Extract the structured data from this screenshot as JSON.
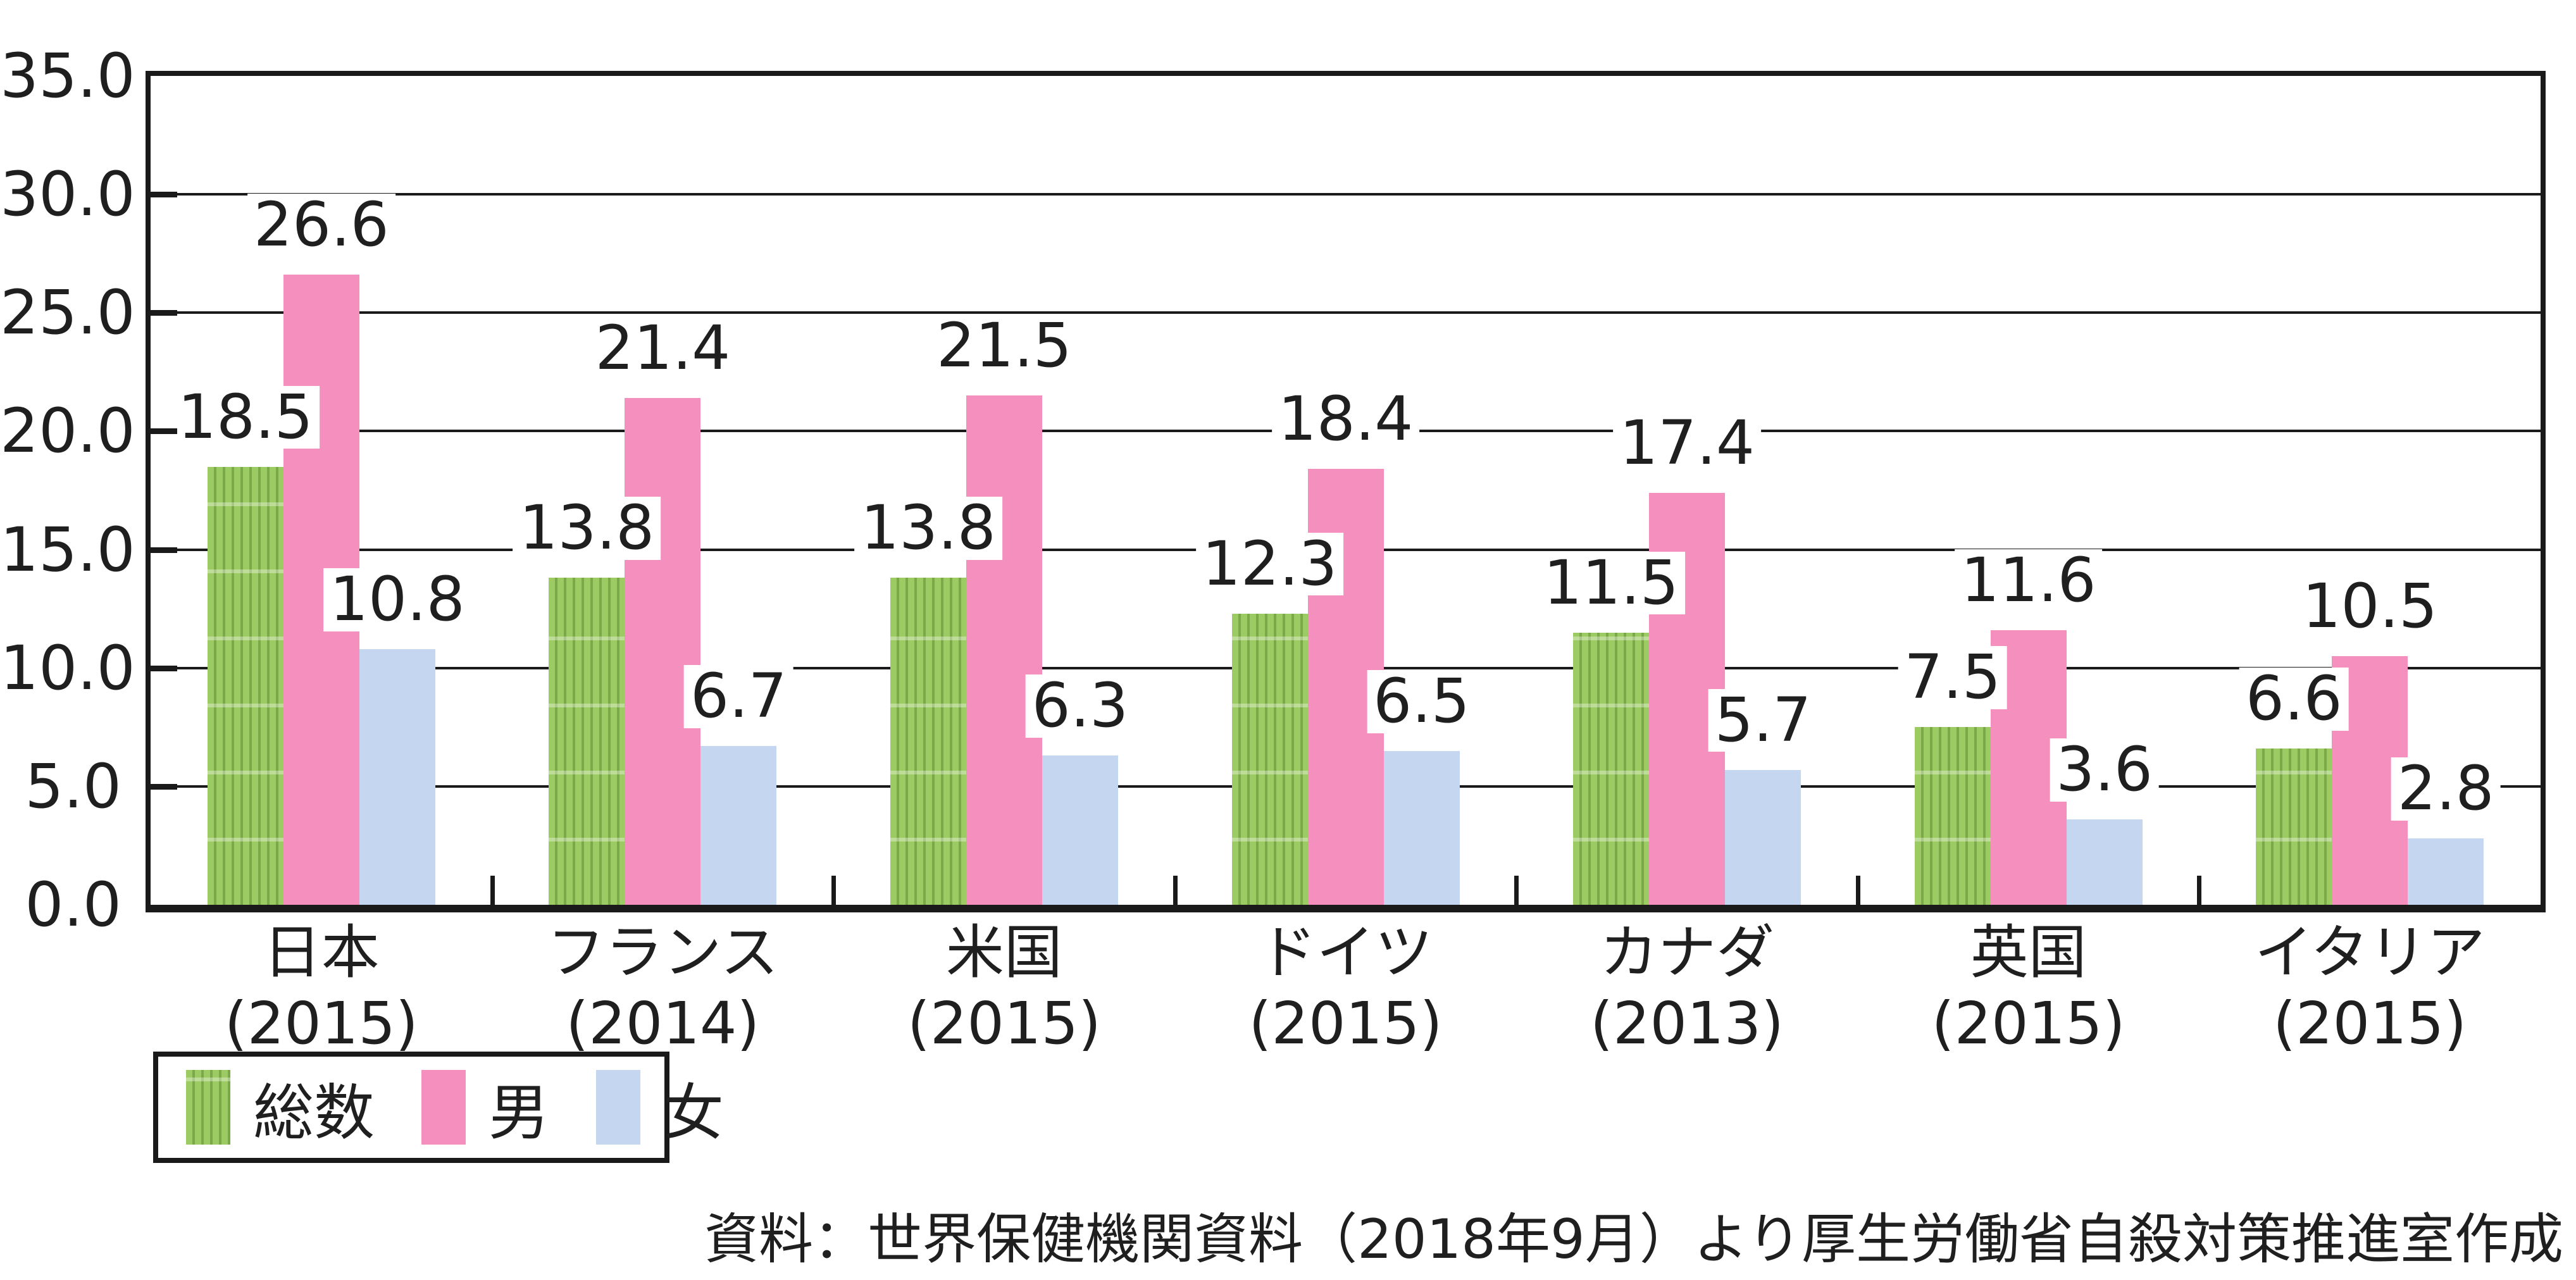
{
  "chart_data": {
    "type": "bar",
    "title": "",
    "xlabel": "",
    "ylabel": "",
    "categories": [
      {
        "label": "日本",
        "year": "(2015)"
      },
      {
        "label": "フランス",
        "year": "(2014)"
      },
      {
        "label": "米国",
        "year": "(2015)"
      },
      {
        "label": "ドイツ",
        "year": "(2015)"
      },
      {
        "label": "カナダ",
        "year": "(2013)"
      },
      {
        "label": "英国",
        "year": "(2015)"
      },
      {
        "label": "イタリア",
        "year": "(2015)"
      }
    ],
    "series": [
      {
        "name": "総数",
        "color": "#9bcb62",
        "stripe_color": "#7ba94a",
        "pattern": "vertical-stripes",
        "values": [
          18.5,
          13.8,
          13.8,
          12.3,
          11.5,
          7.5,
          6.6
        ]
      },
      {
        "name": "男",
        "color": "#f590be",
        "pattern": "solid",
        "values": [
          26.6,
          21.4,
          21.5,
          18.4,
          17.4,
          11.6,
          10.5
        ]
      },
      {
        "name": "女",
        "color": "#c4d6f0",
        "pattern": "solid",
        "values": [
          10.8,
          6.7,
          6.3,
          6.5,
          5.7,
          3.6,
          2.8
        ]
      }
    ],
    "ylim": [
      0,
      35
    ],
    "ytick_step": 5,
    "ytick_labels": [
      "0.0",
      "5.0",
      "10.0",
      "15.0",
      "20.0",
      "25.0",
      "30.0",
      "35.0"
    ],
    "grid": true,
    "value_labels": true,
    "value_label_decimals": 1,
    "legend_position": "bottom-left"
  },
  "style": {
    "line_color": "#1a1a1a",
    "text_color": "#1f1f1f",
    "background": "#ffffff"
  },
  "source_note": "資料：世界保健機関資料（2018年9月）より厚生労働省自殺対策推進室作成"
}
